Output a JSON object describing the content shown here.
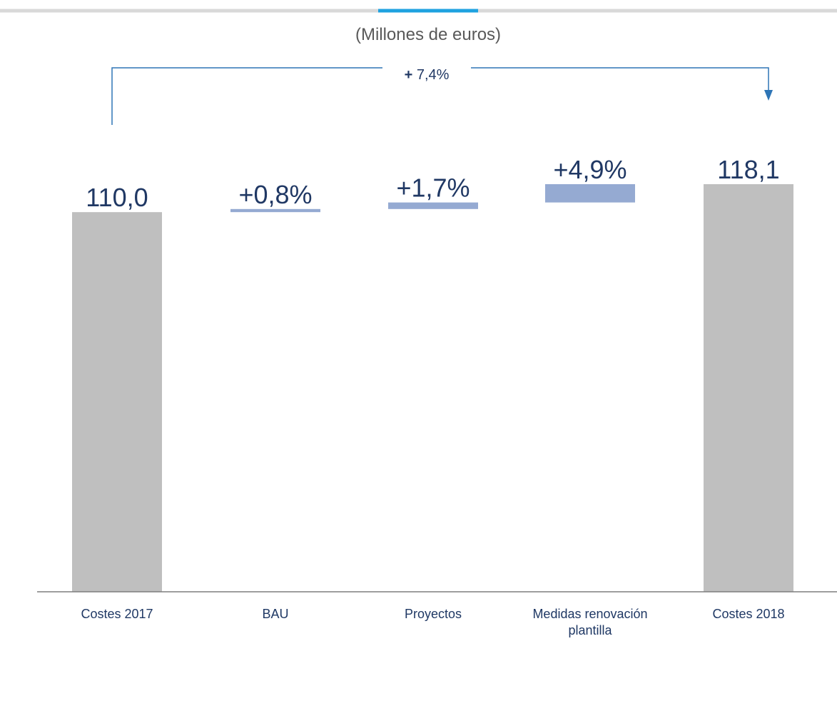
{
  "chart_data": {
    "type": "bar",
    "subtitle": "(Millones de euros)",
    "categories": [
      "Costes 2017",
      "BAU",
      "Proyectos",
      "Medidas renovación plantilla",
      "Costes 2018"
    ],
    "category_lines": [
      [
        "Costes 2017"
      ],
      [
        "BAU"
      ],
      [
        "Proyectos"
      ],
      [
        "Medidas renovación",
        "plantilla"
      ],
      [
        "Costes 2018"
      ]
    ],
    "bars": [
      {
        "kind": "total",
        "start": 0,
        "end": 110.0,
        "label": "110,0"
      },
      {
        "kind": "delta",
        "start": 110.0,
        "end": 110.9,
        "label": "+0,8%"
      },
      {
        "kind": "delta",
        "start": 110.9,
        "end": 112.8,
        "label": "+1,7%"
      },
      {
        "kind": "delta",
        "start": 112.8,
        "end": 118.1,
        "label": "+4,9%"
      },
      {
        "kind": "total",
        "start": 0,
        "end": 118.1,
        "label": "118,1"
      }
    ],
    "total_change": {
      "sign": "+",
      "value": " 7,4%"
    },
    "ylim": [
      0,
      118.1
    ],
    "colors": {
      "total": "#bfbfbf",
      "delta": "#95aad2",
      "value_label": "#203864",
      "axis_label": "#1f3864",
      "bracket": "#2e75b6",
      "subtitle": "#595959",
      "top_rule": "#d9d9d9",
      "top_accent": "#1fa2e0",
      "axis": "#7f7f7f"
    }
  }
}
